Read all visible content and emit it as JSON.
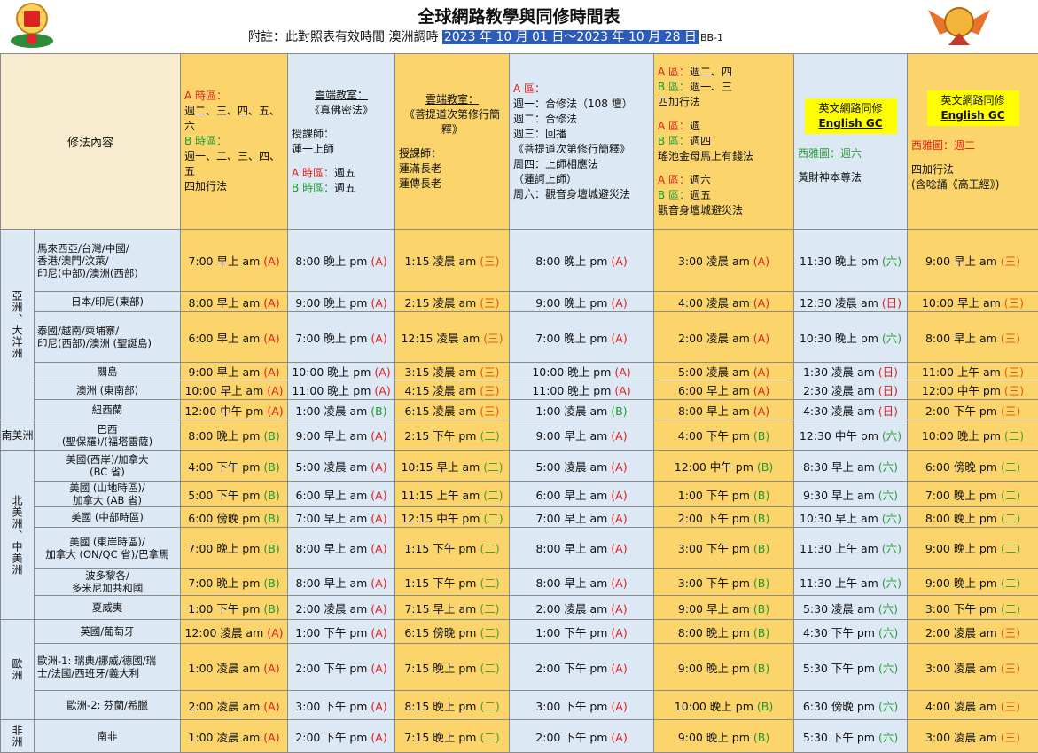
{
  "header": {
    "title": "全球網路教學與同修時間表",
    "note": "附註：此對照表有效時間 澳洲調時",
    "date_range": "2023 年 10 月 01 日～2023 年 10 月 28 日",
    "code": "BB-1"
  },
  "table": {
    "corner": "修法內容",
    "tag_colors": {
      "(A)": "#e0201c",
      "(B)": "#1e9b32",
      "(三)": "#e05a10",
      "(二)": "#4aa02c",
      "(六)": "#2e9e3a",
      "(日)": "#e0201c"
    },
    "columns": [
      {
        "blocks": [
          [
            [
              {
                "text": "A 時區：",
                "color": "#e0201c"
              }
            ],
            [
              "週二、三、四、五、六"
            ],
            [
              {
                "text": "B 時區：",
                "color": "#1e9b32"
              }
            ],
            [
              "週一、二、三、四、五"
            ],
            [
              "四加行法"
            ]
          ]
        ]
      },
      {
        "blocks": [
          [
            [
              {
                "text": "雲端教室：",
                "underline": true
              }
            ],
            [
              "《真佛密法》"
            ]
          ],
          [
            [
              "授課師："
            ],
            [
              "蓮一上師"
            ]
          ],
          [
            [
              {
                "text": "A 時區：",
                "color": "#e0201c"
              },
              "週五"
            ],
            [
              {
                "text": "B 時區：",
                "color": "#1e9b32"
              },
              "週五"
            ]
          ]
        ]
      },
      {
        "blocks": [
          [
            [
              {
                "text": "雲端教室：",
                "underline": true
              }
            ],
            [
              "《菩提道次第修行簡釋》"
            ]
          ],
          [
            [
              "授課師："
            ],
            [
              "蓮滿長老"
            ],
            [
              "蓮傳長老"
            ]
          ]
        ]
      },
      {
        "blocks": [
          [
            [
              {
                "text": "A 區：",
                "color": "#e0201c"
              }
            ],
            [
              "週一：合修法（108 壇）"
            ],
            [
              "週二：合修法"
            ],
            [
              "週三：回播"
            ],
            [
              "《菩提道次第修行簡釋》"
            ],
            [
              "周四：上師相應法"
            ],
            [
              "（蓮訶上師）"
            ],
            [
              "周六：觀音身壇城避災法"
            ]
          ]
        ]
      },
      {
        "blocks": [
          [
            [
              {
                "text": "A 區：",
                "color": "#e0201c"
              },
              "週二、四"
            ],
            [
              {
                "text": "B 區：",
                "color": "#1e9b32"
              },
              "週一、三"
            ],
            [
              "四加行法"
            ]
          ],
          [
            [
              {
                "text": "A 區：",
                "color": "#e0201c"
              },
              "週"
            ],
            [
              {
                "text": "B 區：",
                "color": "#1e9b32"
              },
              "週四"
            ],
            [
              "瑤池金母馬上有錢法"
            ]
          ],
          [
            [
              {
                "text": "A 區：",
                "color": "#e0201c"
              },
              "週六"
            ],
            [
              {
                "text": "B 區：",
                "color": "#1e9b32"
              },
              "週五"
            ],
            [
              "觀音身壇城避災法"
            ]
          ]
        ]
      },
      {
        "badge": [
          "英文網路同修",
          "English GC"
        ],
        "blocks": [
          [
            [
              {
                "text": "西雅圖：週六",
                "color": "#2e9e3a"
              }
            ]
          ],
          [
            [
              "黃財神本尊法"
            ]
          ]
        ]
      },
      {
        "badge": [
          "英文網路同修",
          "English GC"
        ],
        "blocks": [
          [
            [
              {
                "text": "西雅圖：週二",
                "color": "#e0201c"
              }
            ]
          ],
          [
            [
              "四加行法"
            ],
            [
              "(含唸誦《高王經》)"
            ]
          ]
        ]
      }
    ],
    "regions": [
      {
        "name": "亞洲、大洋洲",
        "rows": [
          {
            "location": [
              "馬來西亞/台灣/中國/",
              "香港/澳門/汶萊/",
              "印尼(中部)/澳洲(西部)"
            ],
            "cells": [
              {
                "time": "7:00 早上 am",
                "tag": "(A)"
              },
              {
                "time": "8:00 晚上 pm",
                "tag": "(A)"
              },
              {
                "time": "1:15 凌晨 am",
                "tag": "(三)"
              },
              {
                "time": "8:00 晚上 pm",
                "tag": "(A)"
              },
              {
                "time": "3:00 凌晨 am",
                "tag": "(A)"
              },
              {
                "time": "11:30 晚上 pm",
                "tag": "(六)"
              },
              {
                "time": "9:00 早上 am",
                "tag": "(三)"
              }
            ]
          },
          {
            "location": [
              "日本/印尼(東部)"
            ],
            "cells": [
              {
                "time": "8:00 早上 am",
                "tag": "(A)"
              },
              {
                "time": "9:00 晚上 pm",
                "tag": "(A)"
              },
              {
                "time": "2:15 凌晨 am",
                "tag": "(三)"
              },
              {
                "time": "9:00 晚上 pm",
                "tag": "(A)"
              },
              {
                "time": "4:00 凌晨 am",
                "tag": "(A)"
              },
              {
                "time": "12:30 凌晨 am",
                "tag": "(日)"
              },
              {
                "time": "10:00 早上 am",
                "tag": "(三)"
              }
            ]
          },
          {
            "location": [
              "泰國/越南/柬埔寨/",
              "印尼(西部)/澳洲 (聖誕島)"
            ],
            "cells": [
              {
                "time": "6:00 早上 am",
                "tag": "(A)"
              },
              {
                "time": "7:00 晚上 pm",
                "tag": "(A)"
              },
              {
                "time": "12:15 凌晨 am",
                "tag": "(三)"
              },
              {
                "time": "7:00 晚上 pm",
                "tag": "(A)"
              },
              {
                "time": "2:00 凌晨 am",
                "tag": "(A)"
              },
              {
                "time": "10:30 晚上 pm",
                "tag": "(六)"
              },
              {
                "time": "8:00 早上 am",
                "tag": "(三)"
              }
            ]
          },
          {
            "location": [
              "關島"
            ],
            "cells": [
              {
                "time": "9:00 早上 am",
                "tag": "(A)"
              },
              {
                "time": "10:00 晚上 pm",
                "tag": "(A)"
              },
              {
                "time": "3:15 凌晨 am",
                "tag": "(三)"
              },
              {
                "time": "10:00 晚上 pm",
                "tag": "(A)"
              },
              {
                "time": "5:00 凌晨 am",
                "tag": "(A)"
              },
              {
                "time": "1:30 凌晨 am",
                "tag": "(日)"
              },
              {
                "time": "11:00 上午 am",
                "tag": "(三)"
              }
            ]
          },
          {
            "location": [
              "澳洲 (東南部)"
            ],
            "cells": [
              {
                "time": "10:00 早上 am",
                "tag": "(A)"
              },
              {
                "time": "11:00 晚上 pm",
                "tag": "(A)"
              },
              {
                "time": "4:15 凌晨 am",
                "tag": "(三)"
              },
              {
                "time": "11:00 晚上 pm",
                "tag": "(A)"
              },
              {
                "time": "6:00 早上 am",
                "tag": "(A)"
              },
              {
                "time": "2:30 凌晨 am",
                "tag": "(日)"
              },
              {
                "time": "12:00 中午 pm",
                "tag": "(三)"
              }
            ]
          },
          {
            "location": [
              "紐西蘭"
            ],
            "cells": [
              {
                "time": "12:00 中午 pm",
                "tag": "(A)"
              },
              {
                "time": "1:00 凌晨 am",
                "tag": "(B)"
              },
              {
                "time": "6:15 凌晨 am",
                "tag": "(三)"
              },
              {
                "time": "1:00 凌晨 am",
                "tag": "(B)"
              },
              {
                "time": "8:00 早上 am",
                "tag": "(A)"
              },
              {
                "time": "4:30 凌晨 am",
                "tag": "(日)"
              },
              {
                "time": "2:00 下午 pm",
                "tag": "(三)"
              }
            ]
          }
        ]
      },
      {
        "name": "南美洲",
        "rows": [
          {
            "location": [
              "巴西",
              "(聖保羅)/(福塔雷薩)"
            ],
            "cells": [
              {
                "time": "8:00 晚上 pm",
                "tag": "(B)"
              },
              {
                "time": "9:00 早上 am",
                "tag": "(A)"
              },
              {
                "time": "2:15 下午 pm",
                "tag": "(二)"
              },
              {
                "time": "9:00 早上 am",
                "tag": "(A)"
              },
              {
                "time": "4:00 下午 pm",
                "tag": "(B)"
              },
              {
                "time": "12:30 中午 pm",
                "tag": "(六)"
              },
              {
                "time": "10:00 晚上 pm",
                "tag": "(二)"
              }
            ]
          }
        ]
      },
      {
        "name": "北美洲、中美洲",
        "rows": [
          {
            "location": [
              "美國(西岸)/加拿大",
              "(BC 省)"
            ],
            "cells": [
              {
                "time": "4:00 下午 pm",
                "tag": "(B)"
              },
              {
                "time": "5:00 凌晨 am",
                "tag": "(A)"
              },
              {
                "time": "10:15 早上 am",
                "tag": "(二)"
              },
              {
                "time": "5:00 凌晨 am",
                "tag": "(A)"
              },
              {
                "time": "12:00 中午 pm",
                "tag": "(B)"
              },
              {
                "time": "8:30 早上 am",
                "tag": "(六)"
              },
              {
                "time": "6:00 傍晚 pm",
                "tag": "(二)"
              }
            ]
          },
          {
            "location": [
              "美國 (山地時區)/",
              "加拿大 (AB 省)"
            ],
            "cells": [
              {
                "time": "5:00 下午 pm",
                "tag": "(B)"
              },
              {
                "time": "6:00 早上 am",
                "tag": "(A)"
              },
              {
                "time": "11:15 上午 am",
                "tag": "(二)"
              },
              {
                "time": "6:00 早上 am",
                "tag": "(A)"
              },
              {
                "time": "1:00 下午 pm",
                "tag": "(B)"
              },
              {
                "time": "9:30 早上 am",
                "tag": "(六)"
              },
              {
                "time": "7:00 晚上 pm",
                "tag": "(二)"
              }
            ]
          },
          {
            "location": [
              "美國 (中部時區)"
            ],
            "cells": [
              {
                "time": "6:00 傍晚 pm",
                "tag": "(B)"
              },
              {
                "time": "7:00 早上 am",
                "tag": "(A)"
              },
              {
                "time": "12:15 中午 pm",
                "tag": "(二)"
              },
              {
                "time": "7:00 早上 am",
                "tag": "(A)"
              },
              {
                "time": "2:00 下午 pm",
                "tag": "(B)"
              },
              {
                "time": "10:30 早上 am",
                "tag": "(六)"
              },
              {
                "time": "8:00 晚上 pm",
                "tag": "(二)"
              }
            ]
          },
          {
            "location": [
              "美國 (東岸時區)/",
              "加拿大 (ON/QC 省)/巴拿馬"
            ],
            "cells": [
              {
                "time": "7:00 晚上 pm",
                "tag": "(B)"
              },
              {
                "time": "8:00 早上 am",
                "tag": "(A)"
              },
              {
                "time": "1:15 下午 pm",
                "tag": "(二)"
              },
              {
                "time": "8:00 早上 am",
                "tag": "(A)"
              },
              {
                "time": "3:00 下午 pm",
                "tag": "(B)"
              },
              {
                "time": "11:30 上午 am",
                "tag": "(六)"
              },
              {
                "time": "9:00 晚上 pm",
                "tag": "(二)"
              }
            ]
          },
          {
            "location": [
              "波多黎各/",
              "多米尼加共和國"
            ],
            "cells": [
              {
                "time": "7:00 晚上 pm",
                "tag": "(B)"
              },
              {
                "time": "8:00 早上 am",
                "tag": "(A)"
              },
              {
                "time": "1:15 下午 pm",
                "tag": "(二)"
              },
              {
                "time": "8:00 早上 am",
                "tag": "(A)"
              },
              {
                "time": "3:00 下午 pm",
                "tag": "(B)"
              },
              {
                "time": "11:30 上午 am",
                "tag": "(六)"
              },
              {
                "time": "9:00 晚上 pm",
                "tag": "(二)"
              }
            ]
          },
          {
            "location": [
              "夏威夷"
            ],
            "cells": [
              {
                "time": "1:00 下午 pm",
                "tag": "(B)"
              },
              {
                "time": "2:00 凌晨 am",
                "tag": "(A)"
              },
              {
                "time": "7:15 早上 am",
                "tag": "(二)"
              },
              {
                "time": "2:00 凌晨 am",
                "tag": "(A)"
              },
              {
                "time": "9:00 早上 am",
                "tag": "(B)"
              },
              {
                "time": "5:30 凌晨 am",
                "tag": "(六)"
              },
              {
                "time": "3:00 下午 pm",
                "tag": "(二)"
              }
            ]
          }
        ]
      },
      {
        "name": "歐洲",
        "rows": [
          {
            "location": [
              "英國/葡萄牙"
            ],
            "cells": [
              {
                "time": "12:00 凌晨 am",
                "tag": "(A)"
              },
              {
                "time": "1:00 下午 pm",
                "tag": "(A)"
              },
              {
                "time": "6:15 傍晚 pm",
                "tag": "(二)"
              },
              {
                "time": "1:00 下午 pm",
                "tag": "(A)"
              },
              {
                "time": "8:00 晚上 pm",
                "tag": "(B)"
              },
              {
                "time": "4:30 下午 pm",
                "tag": "(六)"
              },
              {
                "time": "2:00 凌晨 am",
                "tag": "(三)"
              }
            ]
          },
          {
            "location": [
              "歐洲-1: 瑞典/挪威/德國/瑞",
              "士/法國/西班牙/義大利"
            ],
            "cells": [
              {
                "time": "1:00 凌晨 am",
                "tag": "(A)"
              },
              {
                "time": "2:00 下午 pm",
                "tag": "(A)"
              },
              {
                "time": "7:15 晚上 pm",
                "tag": "(二)"
              },
              {
                "time": "2:00 下午 pm",
                "tag": "(A)"
              },
              {
                "time": "9:00 晚上 pm",
                "tag": "(B)"
              },
              {
                "time": "5:30 下午 pm",
                "tag": "(六)"
              },
              {
                "time": "3:00 凌晨 am",
                "tag": "(三)"
              }
            ]
          },
          {
            "location": [
              "歐洲-2: 芬蘭/希臘"
            ],
            "cells": [
              {
                "time": "2:00 凌晨 am",
                "tag": "(A)"
              },
              {
                "time": "3:00 下午 pm",
                "tag": "(A)"
              },
              {
                "time": "8:15 晚上 pm",
                "tag": "(二)"
              },
              {
                "time": "3:00 下午 pm",
                "tag": "(A)"
              },
              {
                "time": "10:00 晚上 pm",
                "tag": "(B)"
              },
              {
                "time": "6:30 傍晚 pm",
                "tag": "(六)"
              },
              {
                "time": "4:00 凌晨 am",
                "tag": "(三)"
              }
            ]
          }
        ]
      },
      {
        "name": "非洲",
        "rows": [
          {
            "location": [
              "南非"
            ],
            "cells": [
              {
                "time": "1:00 凌晨 am",
                "tag": "(A)"
              },
              {
                "time": "2:00 下午 pm",
                "tag": "(A)"
              },
              {
                "time": "7:15 晚上 pm",
                "tag": "(二)"
              },
              {
                "time": "2:00 下午 pm",
                "tag": "(A)"
              },
              {
                "time": "9:00 晚上 pm",
                "tag": "(B)"
              },
              {
                "time": "5:30 下午 pm",
                "tag": "(六)"
              },
              {
                "time": "3:00 凌晨 am",
                "tag": "(三)"
              }
            ]
          }
        ]
      }
    ]
  }
}
